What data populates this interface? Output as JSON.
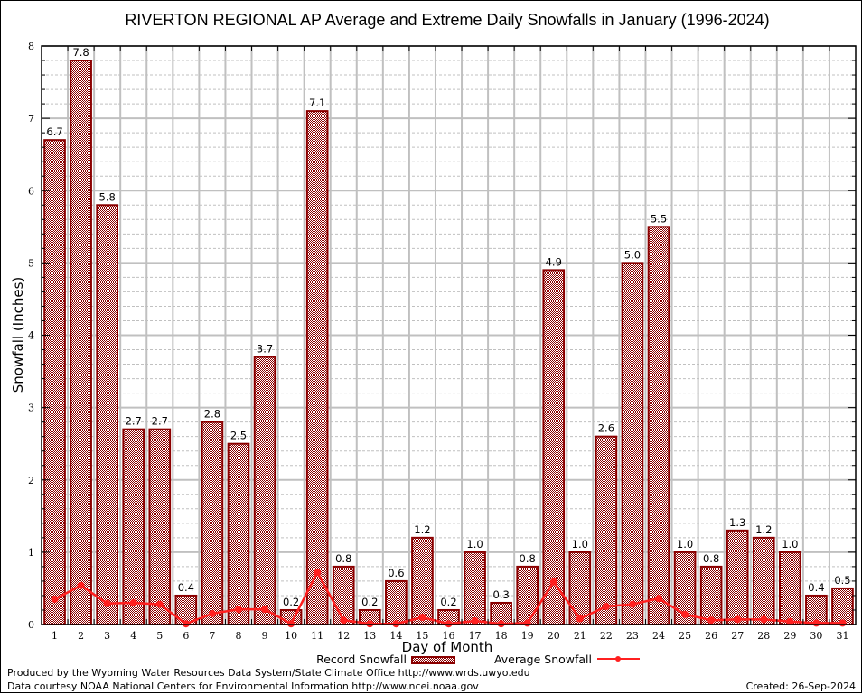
{
  "chart_data": {
    "type": "bar",
    "title": "RIVERTON REGIONAL AP Average and Extreme Daily Snowfalls in January (1996-2024)",
    "xlabel": "Day of Month",
    "ylabel": "Snowfall (Inches)",
    "ylim": [
      0,
      8
    ],
    "yticks": [
      0,
      1,
      2,
      3,
      4,
      5,
      6,
      7,
      8
    ],
    "grid": true,
    "legend_placement": "bottom-center",
    "categories": [
      "1",
      "2",
      "3",
      "4",
      "5",
      "6",
      "7",
      "8",
      "9",
      "10",
      "11",
      "12",
      "13",
      "14",
      "15",
      "16",
      "17",
      "18",
      "19",
      "20",
      "21",
      "22",
      "23",
      "24",
      "25",
      "26",
      "27",
      "28",
      "29",
      "30",
      "31"
    ],
    "series": [
      {
        "name": "Record Snowfall",
        "type": "bar",
        "color": "#8b0000",
        "values": [
          6.7,
          7.8,
          5.8,
          2.7,
          2.7,
          0.4,
          2.8,
          2.5,
          3.7,
          0.2,
          7.1,
          0.8,
          0.2,
          0.6,
          1.2,
          0.2,
          1.0,
          0.3,
          0.8,
          4.9,
          1.0,
          2.6,
          5.0,
          5.5,
          1.0,
          0.8,
          1.3,
          1.2,
          1.0,
          0.4,
          0.5
        ],
        "labels": [
          "6.7",
          "7.8",
          "5.8",
          "2.7",
          "2.7",
          "0.4",
          "2.8",
          "2.5",
          "3.7",
          "0.2",
          "7.1",
          "0.8",
          "0.2",
          "0.6",
          "1.2",
          "0.2",
          "1.0",
          "0.3",
          "0.8",
          "4.9",
          "1.0",
          "2.6",
          "5.0",
          "5.5",
          "1.0",
          "0.8",
          "1.3",
          "1.2",
          "1.0",
          "0.4",
          "0.5"
        ]
      },
      {
        "name": "Average Snowfall",
        "type": "line",
        "color": "#ff2020",
        "values": [
          0.35,
          0.54,
          0.29,
          0.3,
          0.28,
          0.01,
          0.15,
          0.21,
          0.21,
          0.01,
          0.72,
          0.06,
          0.01,
          0.01,
          0.1,
          0.01,
          0.05,
          0.01,
          0.02,
          0.59,
          0.08,
          0.25,
          0.28,
          0.36,
          0.14,
          0.06,
          0.07,
          0.07,
          0.04,
          0.02,
          0.02
        ]
      }
    ]
  },
  "footer": {
    "line1": "Produced by the Wyoming Water Resources Data System/State Climate Office http://www.wrds.uwyo.edu",
    "line2": "Data courtesy NOAA National Centers for Environmental Information http://www.ncei.noaa.gov",
    "created": "Created: 26-Sep-2024"
  }
}
